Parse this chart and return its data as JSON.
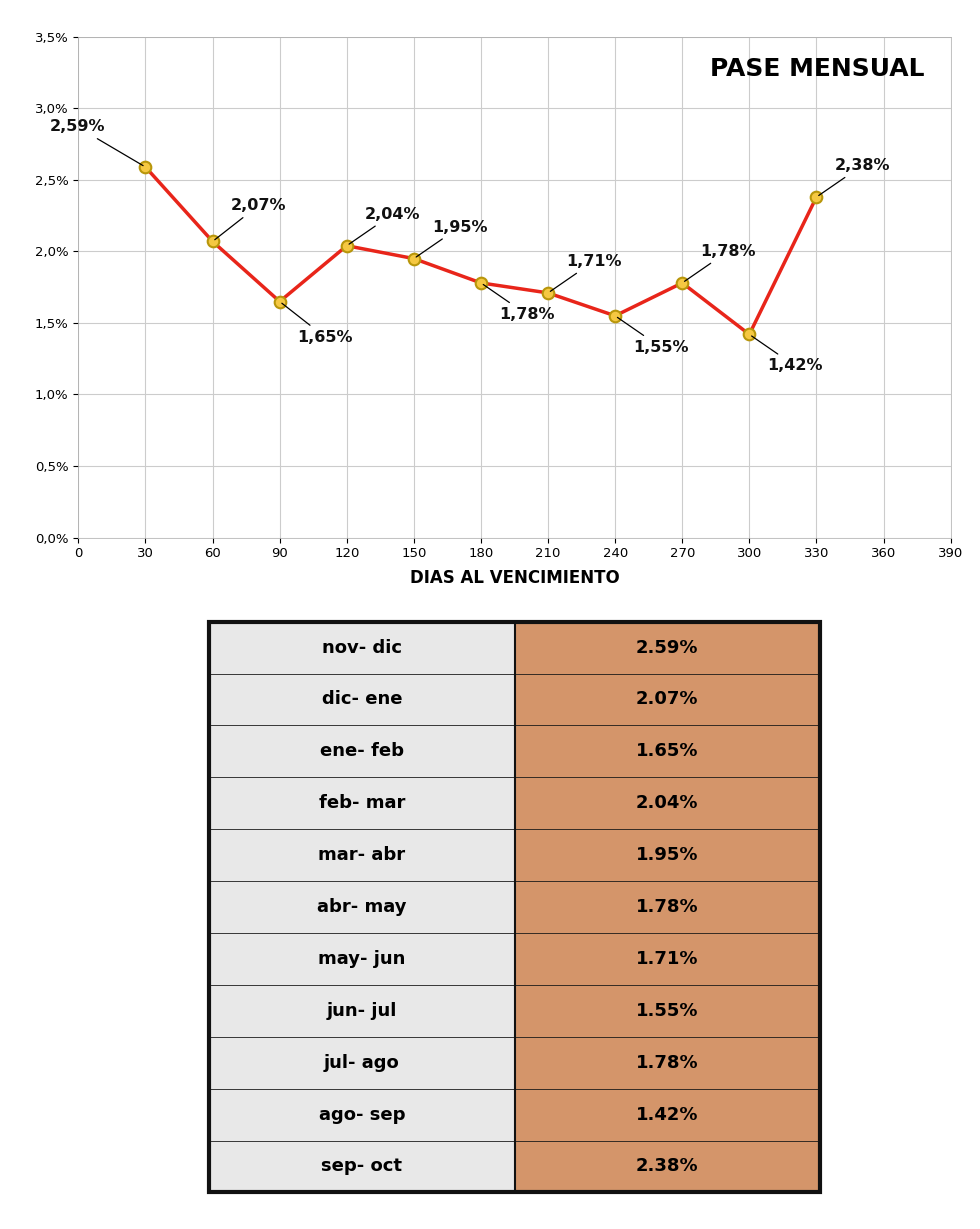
{
  "x_values": [
    30,
    60,
    90,
    120,
    150,
    180,
    210,
    240,
    270,
    300,
    330
  ],
  "y_values": [
    2.59,
    2.07,
    1.65,
    2.04,
    1.95,
    1.78,
    1.71,
    1.55,
    1.78,
    1.42,
    2.38
  ],
  "labels": [
    "2,59%",
    "2,07%",
    "1,65%",
    "2,04%",
    "1,95%",
    "1,78%",
    "1,71%",
    "1,55%",
    "1,78%",
    "1,42%",
    "2,38%"
  ],
  "label_offsets_x": [
    -18,
    8,
    8,
    8,
    8,
    8,
    8,
    8,
    8,
    8,
    8
  ],
  "label_offsets_y": [
    0.28,
    0.25,
    -0.25,
    0.22,
    0.22,
    -0.22,
    0.22,
    -0.22,
    0.22,
    -0.22,
    0.22
  ],
  "line_color": "#e8251a",
  "marker_facecolor": "#f5c842",
  "marker_edgecolor": "#b8960a",
  "chart_title": "PASE MENSUAL",
  "xlabel": "DIAS AL VENCIMIENTO",
  "xlim": [
    0,
    390
  ],
  "ylim": [
    0.0,
    3.5
  ],
  "ytick_vals": [
    0.0,
    0.5,
    1.0,
    1.5,
    2.0,
    2.5,
    3.0,
    3.5
  ],
  "ytick_labels": [
    "0,0%",
    "0,5%",
    "1,0%",
    "1,5%",
    "2,0%",
    "2,5%",
    "3,0%",
    "3,5%"
  ],
  "xtick_vals": [
    0,
    30,
    60,
    90,
    120,
    150,
    180,
    210,
    240,
    270,
    300,
    330,
    360,
    390
  ],
  "grid_color": "#cccccc",
  "bg_color": "#ffffff",
  "table_rows": [
    [
      "nov- dic",
      "2.59%"
    ],
    [
      "dic- ene",
      "2.07%"
    ],
    [
      "ene- feb",
      "1.65%"
    ],
    [
      "feb- mar",
      "2.04%"
    ],
    [
      "mar- abr",
      "1.95%"
    ],
    [
      "abr- may",
      "1.78%"
    ],
    [
      "may- jun",
      "1.71%"
    ],
    [
      "jun- jul",
      "1.55%"
    ],
    [
      "jul- ago",
      "1.78%"
    ],
    [
      "ago- sep",
      "1.42%"
    ],
    [
      "sep- oct",
      "2.38%"
    ]
  ],
  "table_col1_bg": "#e8e8e8",
  "table_col2_bg": "#d4956a",
  "table_border_color": "#111111",
  "annotation_color": "#111111",
  "annotation_fontsize": 11.5,
  "chart_title_fontsize": 18
}
